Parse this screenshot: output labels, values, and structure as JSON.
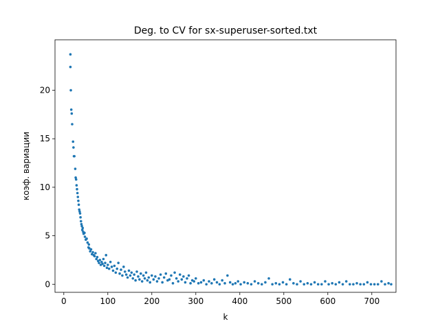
{
  "chart_data": {
    "type": "scatter",
    "title": "Deg. to CV for sx-superuser-sorted.txt",
    "x_label": "k",
    "y_label": "коэф. вариации",
    "color": "#1f77b4",
    "xlim": [
      -20,
      755
    ],
    "ylim": [
      -0.83,
      25.2
    ],
    "xticks": [
      0,
      100,
      200,
      300,
      400,
      500,
      600,
      700
    ],
    "yticks": [
      0,
      5,
      10,
      15,
      20
    ],
    "x": [
      15,
      15,
      16,
      17,
      18,
      19,
      21,
      22,
      23,
      24,
      26,
      27,
      28,
      29,
      30,
      31,
      32,
      33,
      34,
      35,
      36,
      37,
      38,
      39,
      40,
      41,
      42,
      43,
      44,
      45,
      47,
      48,
      50,
      52,
      54,
      56,
      57,
      58,
      60,
      62,
      64,
      66,
      68,
      70,
      72,
      74,
      76,
      78,
      80,
      82,
      84,
      86,
      88,
      90,
      92,
      94,
      96,
      98,
      100,
      103,
      106,
      109,
      112,
      115,
      118,
      121,
      124,
      127,
      130,
      133,
      136,
      139,
      142,
      145,
      148,
      151,
      154,
      157,
      160,
      163,
      166,
      169,
      172,
      175,
      178,
      181,
      184,
      187,
      190,
      193,
      196,
      200,
      204,
      208,
      212,
      216,
      220,
      224,
      228,
      232,
      236,
      240,
      244,
      248,
      252,
      256,
      260,
      264,
      268,
      272,
      276,
      280,
      284,
      288,
      292,
      296,
      300,
      306,
      312,
      318,
      324,
      330,
      336,
      342,
      348,
      354,
      360,
      366,
      372,
      378,
      384,
      390,
      396,
      402,
      410,
      418,
      426,
      434,
      442,
      450,
      458,
      466,
      474,
      482,
      490,
      498,
      506,
      514,
      522,
      530,
      538,
      546,
      554,
      562,
      570,
      578,
      586,
      594,
      602,
      610,
      618,
      626,
      634,
      642,
      650,
      658,
      666,
      674,
      682,
      690,
      698,
      706,
      714,
      722,
      730,
      738,
      744
    ],
    "values": [
      23.7,
      22.4,
      20.0,
      18.0,
      17.6,
      16.5,
      14.7,
      14.1,
      13.2,
      13.2,
      11.9,
      11.0,
      10.8,
      10.2,
      9.8,
      9.4,
      9.0,
      8.6,
      8.2,
      7.7,
      7.5,
      7.3,
      6.9,
      6.5,
      6.2,
      6.0,
      5.6,
      5.8,
      5.4,
      5.2,
      5.3,
      4.9,
      4.6,
      4.7,
      4.3,
      3.8,
      4.1,
      3.7,
      3.4,
      3.6,
      3.1,
      3.3,
      3.0,
      2.9,
      3.2,
      2.6,
      2.8,
      2.4,
      2.2,
      2.5,
      2.0,
      2.3,
      2.1,
      2.6,
      1.9,
      2.2,
      3.0,
      1.7,
      2.0,
      1.6,
      2.3,
      1.8,
      1.4,
      1.9,
      1.2,
      1.6,
      2.2,
      1.1,
      1.5,
      0.9,
      1.8,
      1.3,
      1.0,
      0.7,
      1.4,
      0.9,
      1.2,
      0.6,
      1.0,
      0.4,
      1.3,
      0.8,
      0.5,
      1.1,
      0.3,
      0.9,
      0.6,
      1.2,
      0.4,
      0.7,
      0.2,
      0.9,
      0.5,
      0.8,
      0.3,
      0.6,
      1.0,
      0.2,
      0.7,
      1.1,
      0.4,
      0.5,
      0.9,
      0.1,
      1.2,
      0.6,
      0.3,
      1.0,
      0.5,
      0.8,
      0.2,
      0.6,
      0.9,
      0.1,
      0.4,
      0.3,
      0.6,
      0.1,
      0.2,
      0.4,
      0.0,
      0.3,
      0.1,
      0.5,
      0.2,
      0.0,
      0.4,
      0.1,
      0.9,
      0.2,
      0.0,
      0.1,
      0.3,
      0.0,
      0.2,
      0.1,
      0.0,
      0.3,
      0.1,
      0.0,
      0.2,
      0.6,
      0.0,
      0.1,
      0.0,
      0.2,
      0.0,
      0.5,
      0.1,
      0.0,
      0.3,
      0.0,
      0.1,
      0.0,
      0.2,
      0.0,
      0.0,
      0.3,
      0.0,
      0.1,
      0.0,
      0.2,
      0.0,
      0.3,
      0.0,
      0.0,
      0.1,
      0.0,
      0.0,
      0.2,
      0.0,
      0.0,
      0.0,
      0.3,
      0.0,
      0.1,
      0.0
    ]
  }
}
